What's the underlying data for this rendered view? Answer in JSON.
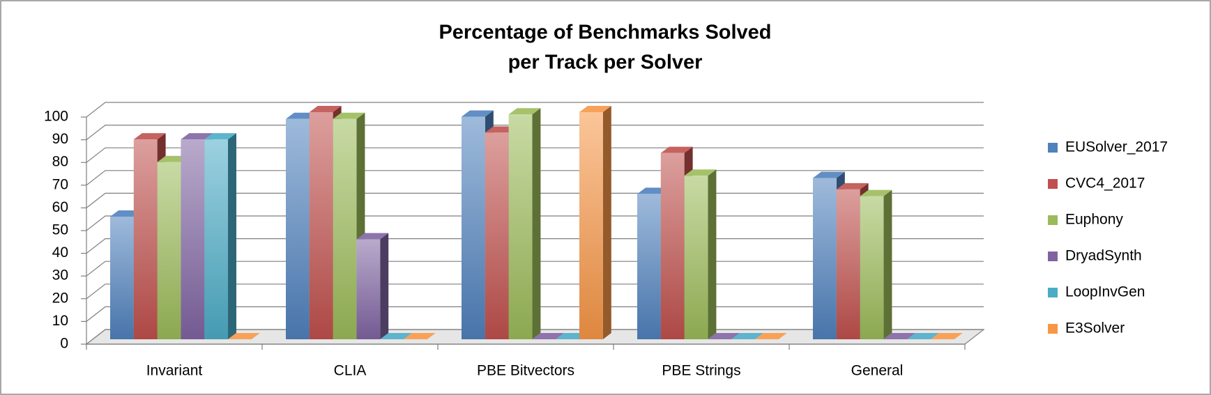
{
  "chart_data": {
    "type": "bar3d",
    "title": [
      "Percentage of Benchmarks Solved",
      "per Track per Solver"
    ],
    "categories": [
      "Invariant",
      "CLIA",
      "PBE Bitvectors",
      "PBE Strings",
      "General"
    ],
    "series": [
      {
        "name": "EUSolver_2017",
        "color": "#4f81bd",
        "values": [
          54,
          97,
          98,
          64,
          71
        ]
      },
      {
        "name": "CVC4_2017",
        "color": "#c0504d",
        "values": [
          88,
          100,
          91,
          82,
          66
        ]
      },
      {
        "name": "Euphony",
        "color": "#9bbb59",
        "values": [
          78,
          97,
          99,
          72,
          63
        ]
      },
      {
        "name": "DryadSynth",
        "color": "#8064a2",
        "values": [
          88,
          44,
          0,
          0,
          0
        ]
      },
      {
        "name": "LoopInvGen",
        "color": "#4bacc6",
        "values": [
          88,
          0,
          0,
          0,
          0
        ]
      },
      {
        "name": "E3Solver",
        "color": "#f79646",
        "values": [
          0,
          0,
          100,
          0,
          0
        ]
      }
    ],
    "ylim": [
      0,
      100
    ],
    "yticks": [
      0,
      10,
      20,
      30,
      40,
      50,
      60,
      70,
      80,
      90,
      100
    ],
    "grid": true,
    "legend": "right"
  }
}
